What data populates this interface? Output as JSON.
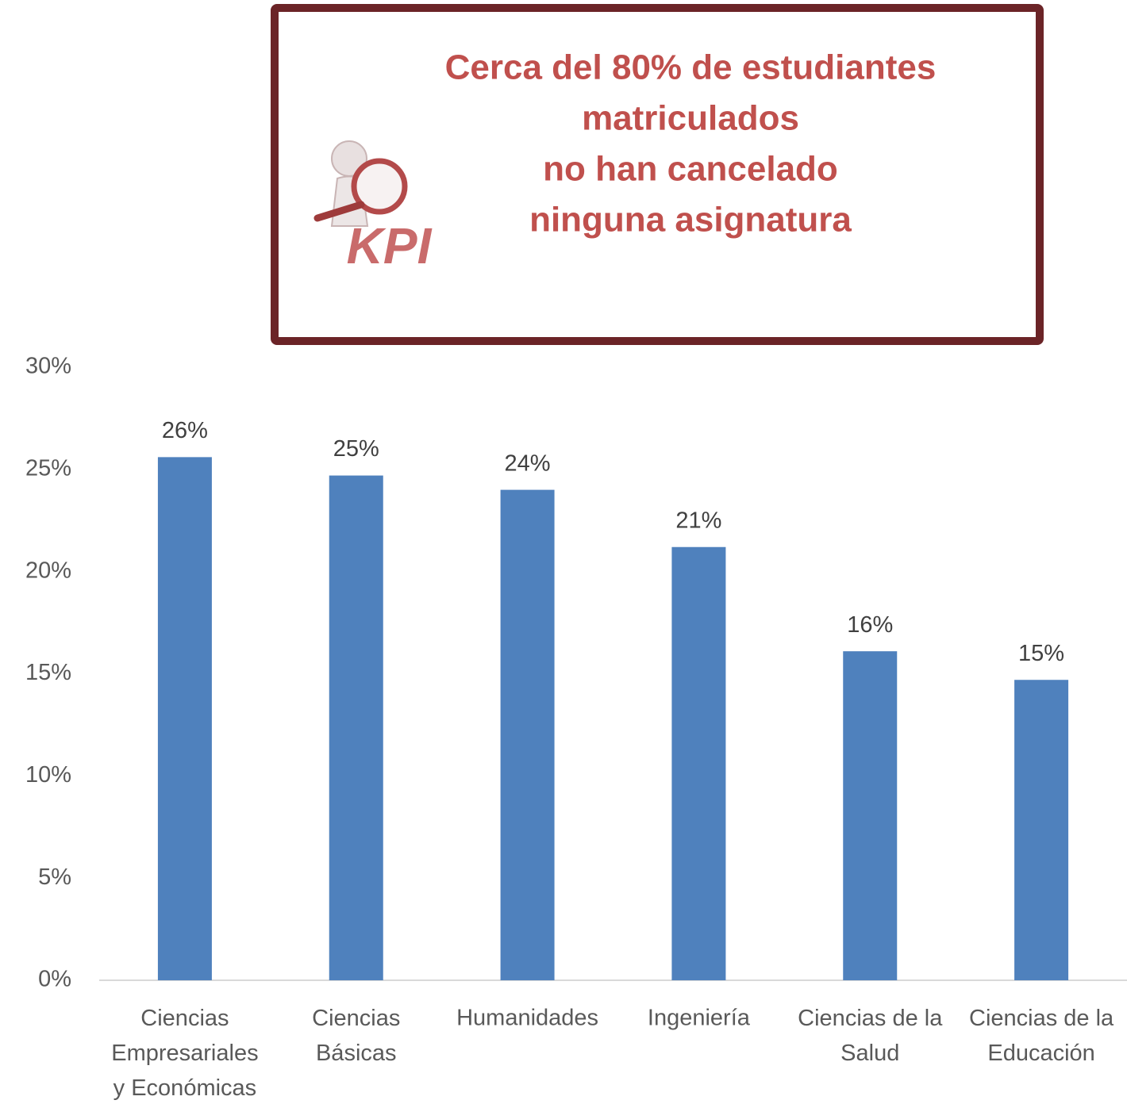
{
  "chart_data": {
    "type": "bar",
    "annotation": [
      "Cerca del 80% de estudiantes",
      "matriculados",
      "no han cancelado",
      "ninguna asignatura"
    ],
    "icon_label": "KPI",
    "categories": [
      "Ciencias\nEmpresariales\ny Económicas",
      "Ciencias\nBásicas",
      "Humanidades",
      "Ingeniería",
      "Ciencias de la\nSalud",
      "Ciencias de la\nEducación"
    ],
    "values": [
      25.6,
      24.7,
      24.0,
      21.2,
      16.1,
      14.7
    ],
    "value_labels": [
      "26%",
      "25%",
      "24%",
      "21%",
      "16%",
      "15%"
    ],
    "color": "#4f81bd",
    "ylim": [
      0,
      30
    ],
    "yticks": [
      {
        "value": 0,
        "label": "0%"
      },
      {
        "value": 5,
        "label": "5%"
      },
      {
        "value": 10,
        "label": "10%"
      },
      {
        "value": 15,
        "label": "15%"
      },
      {
        "value": 20,
        "label": "20%"
      },
      {
        "value": 25,
        "label": "25%"
      },
      {
        "value": 30,
        "label": "30%"
      }
    ],
    "grid": false
  }
}
